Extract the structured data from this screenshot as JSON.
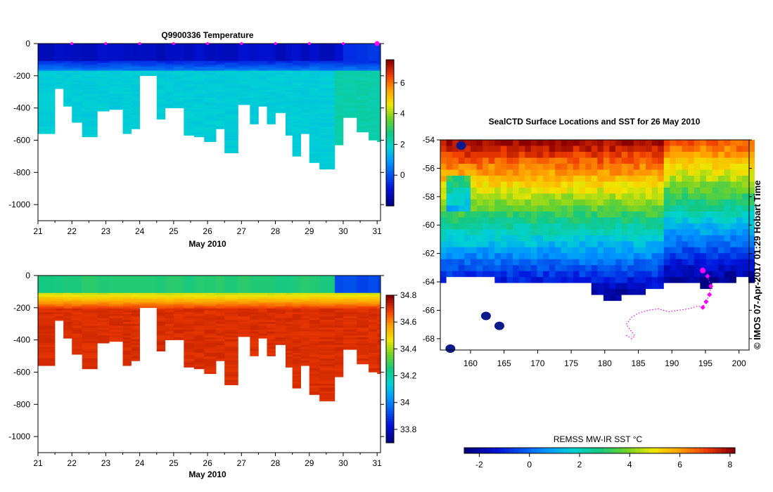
{
  "chart_data": [
    {
      "id": "temperature-section",
      "type": "heatmap",
      "title": "Q9900336  Temperature",
      "xlabel": "May 2010",
      "ylabel": "",
      "xlim": [
        21,
        31.1
      ],
      "ylim": [
        -1100,
        0
      ],
      "xticks": [
        "21",
        "22",
        "23",
        "24",
        "25",
        "26",
        "27",
        "28",
        "29",
        "30",
        "31"
      ],
      "yticks": [
        "0",
        "-200",
        "-400",
        "-600",
        "-800",
        "-1000"
      ],
      "profile_times": [
        21.0,
        21.5,
        21.75,
        22.0,
        22.3,
        22.75,
        23.1,
        23.5,
        23.75,
        24.0,
        24.5,
        24.75,
        25.0,
        25.3,
        25.6,
        25.9,
        26.25,
        26.5,
        26.9,
        27.25,
        27.5,
        27.75,
        28.0,
        28.3,
        28.5,
        28.75,
        29.0,
        29.3,
        29.75,
        30.0,
        30.4,
        30.75,
        31.0
      ],
      "profile_depths": [
        -560,
        -280,
        -390,
        -490,
        -580,
        -420,
        -410,
        -560,
        -530,
        -200,
        -470,
        -400,
        -400,
        -570,
        -580,
        -610,
        -530,
        -680,
        -380,
        -500,
        -390,
        -500,
        -430,
        -570,
        -700,
        -560,
        -740,
        -780,
        -630,
        -460,
        -550,
        -600,
        -610
      ],
      "colorbar": {
        "min": -2,
        "max": 7.5,
        "ticks": [
          "6",
          "4",
          "2",
          "0"
        ]
      },
      "profile_markers": [
        "22",
        "23",
        "24",
        "25",
        "26",
        "27",
        "28",
        "29",
        "30",
        "31"
      ]
    },
    {
      "id": "salinity-section",
      "type": "heatmap",
      "title": "",
      "xlabel": "May 2010",
      "ylabel": "",
      "xlim": [
        21,
        31.1
      ],
      "ylim": [
        -1100,
        0
      ],
      "xticks": [
        "21",
        "22",
        "23",
        "24",
        "25",
        "26",
        "27",
        "28",
        "29",
        "30",
        "31"
      ],
      "yticks": [
        "0",
        "-200",
        "-400",
        "-600",
        "-800",
        "-1000"
      ],
      "colorbar": {
        "min": 33.7,
        "max": 34.8,
        "ticks": [
          "34.8",
          "34.6",
          "34.4",
          "34.2",
          "34",
          "33.8"
        ]
      }
    },
    {
      "id": "sst-map",
      "type": "heatmap",
      "title": "SealCTD Surface Locations and SST for 26 May 2010",
      "xlim": [
        155.5,
        201.5
      ],
      "ylim": [
        -68.8,
        -54
      ],
      "xticks": [
        "160",
        "165",
        "170",
        "175",
        "180",
        "185",
        "190",
        "195",
        "200"
      ],
      "yticks": [
        "-54",
        "-56",
        "-58",
        "-60",
        "-62",
        "-64",
        "-66",
        "-68"
      ],
      "track_lon": [
        195.3,
        195.8,
        195.6,
        195.1,
        194.6,
        193.9,
        192.5,
        191.0,
        189.5,
        188.0,
        186.5,
        185.0,
        184.0,
        183.2,
        183.8,
        184.5,
        184.0,
        183.0
      ],
      "track_lat": [
        -63.6,
        -64.3,
        -64.9,
        -65.4,
        -65.8,
        -65.7,
        -65.9,
        -66.0,
        -66.1,
        -65.9,
        -66.0,
        -66.2,
        -66.5,
        -67.0,
        -67.4,
        -67.8,
        -68.0,
        -67.7
      ],
      "current_position": {
        "lon": 194.6,
        "lat": -63.2
      },
      "colorbar": {
        "label": "REMSS MW-IR SST °C",
        "min": -2.6,
        "max": 8.2,
        "ticks": [
          "-2",
          "0",
          "2",
          "4",
          "6",
          "8"
        ]
      }
    }
  ],
  "credit": "© IMOS 07-Apr-2017 01:29 Hobart Time",
  "colors": {
    "track": "#ff00ff",
    "land": "#ffffff",
    "frame": "#000000"
  }
}
